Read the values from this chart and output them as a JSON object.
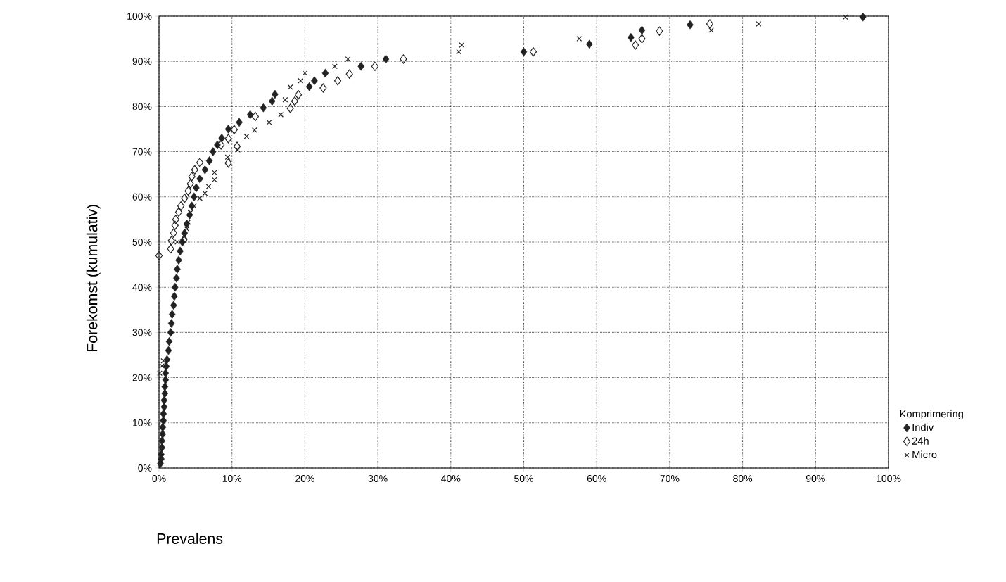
{
  "chart_data": {
    "type": "scatter",
    "xlabel": "Prevalens",
    "ylabel": "Forekomst (kumulativ)",
    "legend_title": "Komprimering",
    "xlim": [
      0,
      100
    ],
    "ylim": [
      0,
      100
    ],
    "xticks": [
      {
        "value": 0,
        "label": "0%"
      },
      {
        "value": 10,
        "label": "10%"
      },
      {
        "value": 20,
        "label": "20%"
      },
      {
        "value": 30,
        "label": "30%"
      },
      {
        "value": 40,
        "label": "40%"
      },
      {
        "value": 50,
        "label": "50%"
      },
      {
        "value": 60,
        "label": "60%"
      },
      {
        "value": 70,
        "label": "70%"
      },
      {
        "value": 80,
        "label": "80%"
      },
      {
        "value": 90,
        "label": "90%"
      },
      {
        "value": 100,
        "label": "100%"
      }
    ],
    "yticks": [
      {
        "value": 0,
        "label": "0%"
      },
      {
        "value": 10,
        "label": "10%"
      },
      {
        "value": 20,
        "label": "20%"
      },
      {
        "value": 30,
        "label": "30%"
      },
      {
        "value": 40,
        "label": "40%"
      },
      {
        "value": 50,
        "label": "50%"
      },
      {
        "value": 60,
        "label": "60%"
      },
      {
        "value": 70,
        "label": "70%"
      },
      {
        "value": 80,
        "label": "80%"
      },
      {
        "value": 90,
        "label": "90%"
      },
      {
        "value": 100,
        "label": "100%"
      }
    ],
    "grid": true,
    "legend": "right",
    "series": [
      {
        "name": "Indiv",
        "color": "#222222",
        "marker": "diamond",
        "x": [
          0.2,
          0.3,
          0.3,
          0.4,
          0.4,
          0.5,
          0.5,
          0.6,
          0.6,
          0.7,
          0.7,
          0.8,
          0.8,
          0.9,
          0.9,
          1.0,
          1.1,
          1.3,
          1.4,
          1.6,
          1.7,
          1.8,
          2.0,
          2.1,
          2.2,
          2.4,
          2.5,
          2.7,
          2.9,
          3.2,
          3.5,
          3.8,
          4.2,
          4.5,
          4.8,
          5.1,
          5.6,
          6.3,
          6.9,
          7.4,
          8.0,
          8.6,
          9.5,
          11,
          12.5,
          14.3,
          15.5,
          15.9,
          20.6,
          21.3,
          22.8,
          27.7,
          31.1,
          50.0,
          59.0,
          64.7,
          66.2,
          72.8,
          96.5
        ],
        "values": [
          1,
          2,
          3,
          4.5,
          6,
          7.5,
          9,
          10.5,
          12,
          13.5,
          15,
          16.5,
          18,
          19.5,
          21,
          22.5,
          24,
          26,
          28,
          30,
          32,
          34,
          36,
          38,
          40,
          42,
          44,
          46,
          48,
          50,
          52,
          54,
          56,
          58,
          60,
          62,
          64,
          66,
          68,
          70,
          71.5,
          73,
          75,
          76.5,
          78.2,
          79.7,
          81.2,
          82.7,
          84.4,
          85.7,
          87.4,
          88.9,
          90.5,
          92.1,
          93.8,
          95.3,
          96.9,
          98.1,
          99.8
        ]
      },
      {
        "name": "24h",
        "color": "#222222",
        "marker": "diamond-open",
        "x": [
          0,
          1.6,
          1.7,
          3.4,
          2.0,
          2.2,
          2.3,
          2.7,
          3.0,
          3.5,
          4.0,
          4.3,
          4.5,
          4.9,
          5.6,
          9.5,
          8.5,
          10.7,
          9.5,
          10.3,
          13.2,
          18.0,
          18.6,
          19.1,
          22.5,
          24.5,
          26.1,
          29.6,
          33.5,
          51.3,
          65.3,
          66.2,
          68.6,
          75.5
        ],
        "values": [
          47,
          48.5,
          50.3,
          50.5,
          52,
          53.7,
          55,
          56.6,
          58,
          59.7,
          61.3,
          62.9,
          64.5,
          66,
          67.6,
          67.5,
          71.5,
          71.2,
          72.9,
          74.9,
          77.8,
          79.6,
          81.2,
          82.6,
          84.1,
          85.7,
          87.2,
          88.9,
          90.5,
          92.1,
          93.6,
          95.0,
          96.7,
          98.3
        ]
      },
      {
        "name": "Micro",
        "color": "#222222",
        "marker": "cross",
        "x": [
          0.1,
          0.4,
          0.6,
          2.5,
          3.5,
          3.8,
          4.0,
          4.3,
          4.8,
          5.6,
          6.3,
          6.8,
          7.6,
          7.6,
          9.4,
          10.8,
          12,
          13.1,
          15.1,
          16.7,
          17.3,
          18,
          19.4,
          20,
          24.1,
          25.9,
          41.1,
          41.5,
          57.6,
          75.7,
          82.2,
          94.1
        ],
        "values": [
          21,
          22.6,
          23.7,
          50,
          51.3,
          52.9,
          54.4,
          56.5,
          58,
          59.7,
          60.8,
          62.3,
          63.8,
          65.4,
          68.8,
          70.4,
          73.4,
          74.8,
          76.5,
          78.2,
          81.5,
          84.3,
          85.7,
          87.4,
          88.9,
          90.5,
          92.1,
          93.6,
          95.0,
          96.9,
          98.3,
          99.8
        ]
      }
    ]
  }
}
